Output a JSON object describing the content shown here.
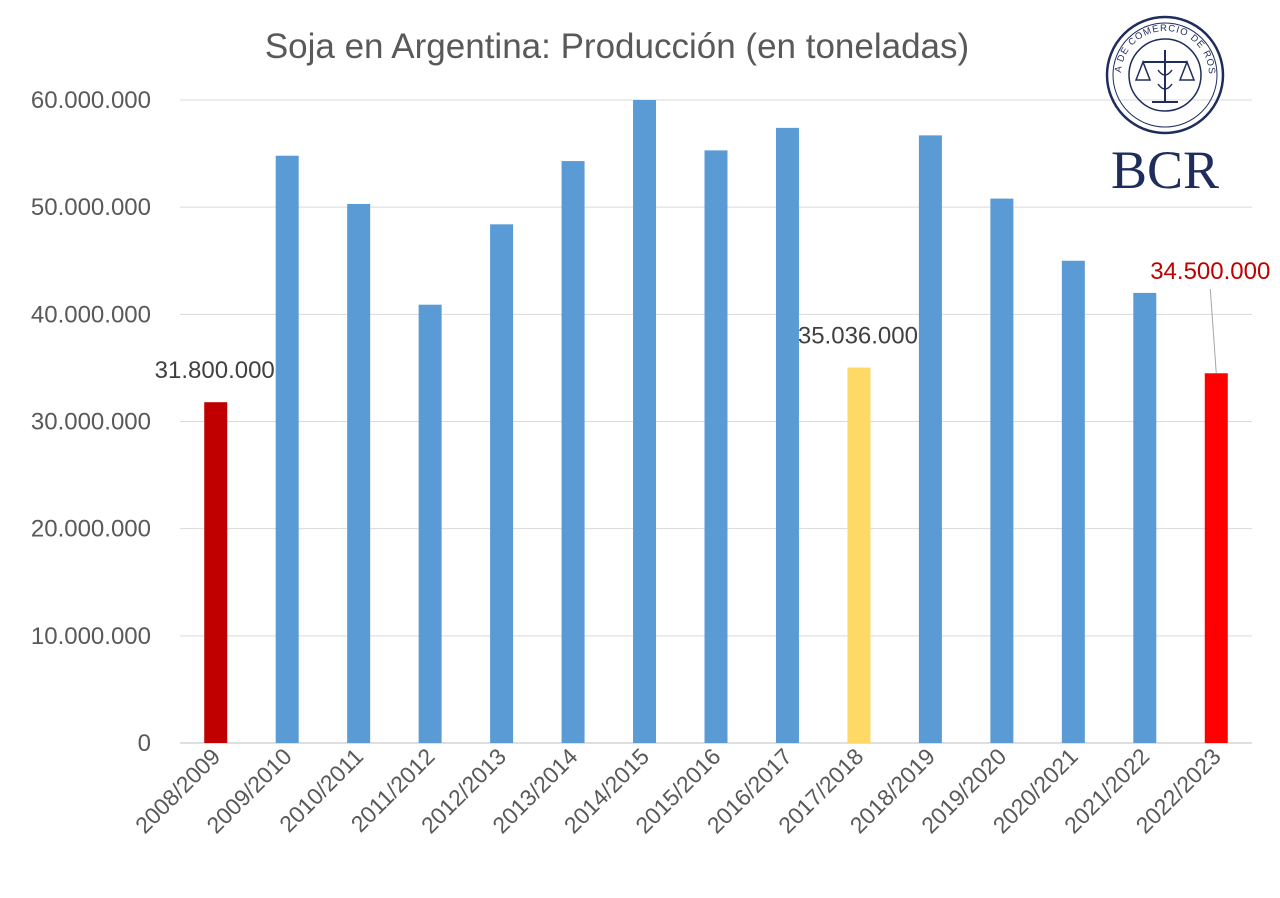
{
  "chart_data": {
    "type": "bar",
    "title": "Soja en Argentina: Producción (en toneladas)",
    "categories": [
      "2008/2009",
      "2009/2010",
      "2010/2011",
      "2011/2012",
      "2012/2013",
      "2013/2014",
      "2014/2015",
      "2015/2016",
      "2016/2017",
      "2017/2018",
      "2018/2019",
      "2019/2020",
      "2020/2021",
      "2021/2022",
      "2022/2023"
    ],
    "values": [
      31800000,
      54800000,
      50300000,
      40900000,
      48400000,
      54300000,
      60000000,
      55300000,
      57400000,
      35036000,
      56700000,
      50800000,
      45000000,
      42000000,
      34500000
    ],
    "bar_colors": [
      "#c00000",
      "#5b9bd5",
      "#5b9bd5",
      "#5b9bd5",
      "#5b9bd5",
      "#5b9bd5",
      "#5b9bd5",
      "#5b9bd5",
      "#5b9bd5",
      "#ffd966",
      "#5b9bd5",
      "#5b9bd5",
      "#5b9bd5",
      "#5b9bd5",
      "#ff0000"
    ],
    "ylim": [
      0,
      60000000
    ],
    "yticks": [
      0,
      10000000,
      20000000,
      30000000,
      40000000,
      50000000,
      60000000
    ],
    "ytick_labels": [
      "0",
      "10.000.000",
      "20.000.000",
      "30.000.000",
      "40.000.000",
      "50.000.000",
      "60.000.000"
    ],
    "grid": true,
    "annotations": [
      {
        "index": 0,
        "text": "31.800.000",
        "color": "#404040"
      },
      {
        "index": 9,
        "text": "35.036.000",
        "color": "#404040"
      },
      {
        "index": 14,
        "text": "34.500.000",
        "color": "#c00000",
        "leader_line": true
      }
    ]
  },
  "logo": {
    "text": "BCR",
    "seal_text": "BOLSA DE COMERCIO DE ROSARIO",
    "color": "#1f2d5c"
  }
}
